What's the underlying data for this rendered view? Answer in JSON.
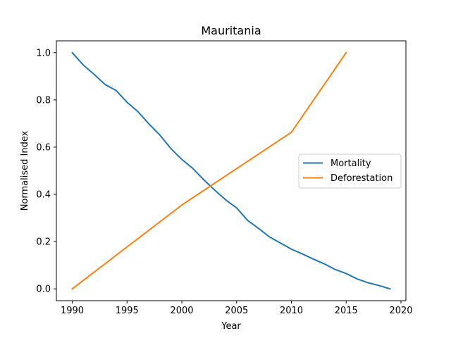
{
  "chart_data": {
    "type": "line",
    "title": "Mauritania",
    "xlabel": "Year",
    "ylabel": "Normalised Index",
    "xlim": [
      1988.55,
      2020.45
    ],
    "ylim": [
      -0.05,
      1.05
    ],
    "xticks": [
      1990,
      1995,
      2000,
      2005,
      2010,
      2015,
      2020
    ],
    "xtick_labels": [
      "1990",
      "1995",
      "2000",
      "2005",
      "2010",
      "2015",
      "2020"
    ],
    "yticks": [
      0.0,
      0.2,
      0.4,
      0.6,
      0.8,
      1.0
    ],
    "ytick_labels": [
      "0.0",
      "0.2",
      "0.4",
      "0.6",
      "0.8",
      "1.0"
    ],
    "grid": false,
    "legend_position": "center-right",
    "series": [
      {
        "name": "Mortality",
        "color": "#1f77b4",
        "x": [
          1990,
          1991,
          1992,
          1993,
          1994,
          1995,
          1996,
          1997,
          1998,
          1999,
          2000,
          2001,
          2002,
          2003,
          2004,
          2005,
          2006,
          2007,
          2008,
          2009,
          2010,
          2011,
          2012,
          2013,
          2014,
          2015,
          2016,
          2017,
          2018,
          2019
        ],
        "y": [
          1.0,
          0.948,
          0.908,
          0.865,
          0.84,
          0.79,
          0.75,
          0.698,
          0.651,
          0.594,
          0.548,
          0.51,
          0.462,
          0.418,
          0.377,
          0.343,
          0.29,
          0.256,
          0.22,
          0.194,
          0.168,
          0.148,
          0.126,
          0.106,
          0.082,
          0.065,
          0.042,
          0.026,
          0.014,
          0.0
        ]
      },
      {
        "name": "Deforestation",
        "color": "#ff7f0e",
        "x": [
          1990,
          2000,
          2010,
          2015
        ],
        "y": [
          0.0,
          0.355,
          0.663,
          1.0
        ]
      }
    ]
  }
}
